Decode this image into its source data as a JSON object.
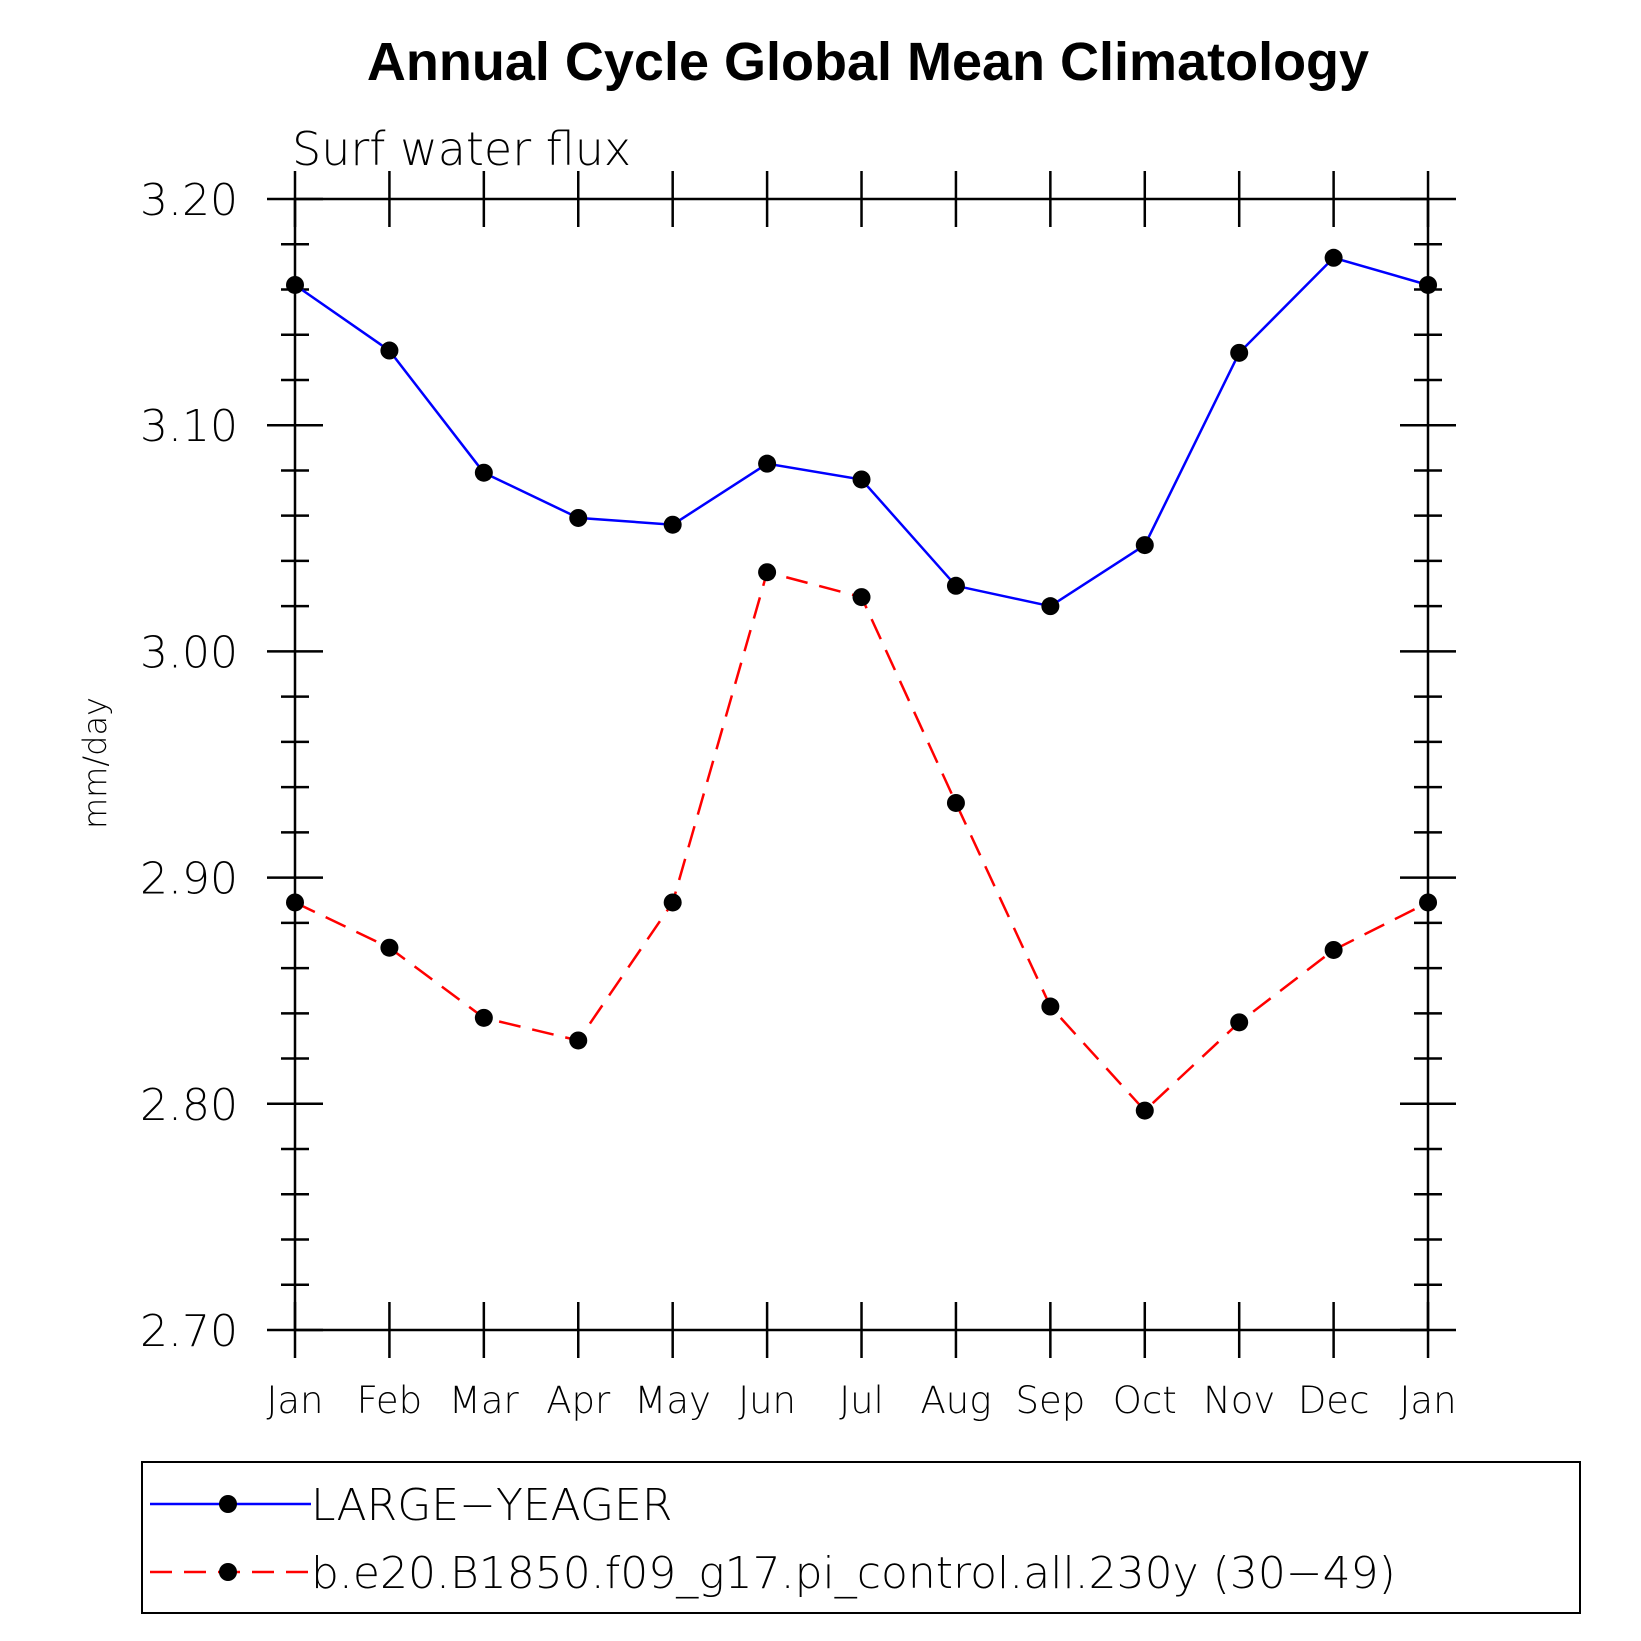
{
  "chart_data": {
    "type": "line",
    "title": "Annual Cycle Global Mean Climatology",
    "subtitle": "Surf water flux",
    "ylabel": "mm/day",
    "xlabel": "",
    "ylim": [
      2.7,
      3.2
    ],
    "yticks": [
      "2.70",
      "2.80",
      "2.90",
      "3.00",
      "3.10",
      "3.20"
    ],
    "categories": [
      "Jan",
      "Feb",
      "Mar",
      "Apr",
      "May",
      "Jun",
      "Jul",
      "Aug",
      "Sep",
      "Oct",
      "Nov",
      "Dec",
      "Jan"
    ],
    "grid": false,
    "legend_position": "bottom",
    "series": [
      {
        "name": "LARGE−YEAGER",
        "color": "#0000ff",
        "style": "solid",
        "marker": "filled-circle",
        "values": [
          3.162,
          3.133,
          3.079,
          3.059,
          3.056,
          3.083,
          3.076,
          3.029,
          3.02,
          3.047,
          3.132,
          3.174,
          3.162
        ]
      },
      {
        "name": "b.e20.B1850.f09_g17.pi_control.all.230y (30−49)",
        "color": "#ff0000",
        "style": "dashed",
        "marker": "filled-circle",
        "values": [
          2.889,
          2.869,
          2.838,
          2.828,
          2.889,
          3.035,
          3.024,
          2.933,
          2.843,
          2.797,
          2.836,
          2.868,
          2.889
        ]
      }
    ]
  }
}
